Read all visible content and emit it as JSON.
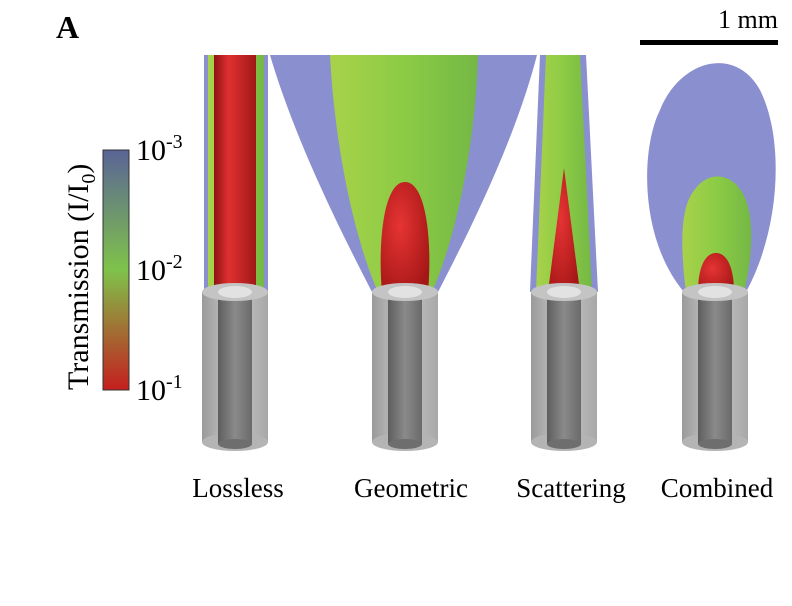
{
  "panel": {
    "letter": "A"
  },
  "scale_bar": {
    "label": "1 mm"
  },
  "colorbar": {
    "title": "Transmission (I/I",
    "title_sub": "0",
    "title_close": ")",
    "ticks": [
      {
        "base": "10",
        "exp": "-3"
      },
      {
        "base": "10",
        "exp": "-2"
      },
      {
        "base": "10",
        "exp": "-1"
      }
    ],
    "colors": [
      "#5a6496",
      "#7fc24a",
      "#c41e1e"
    ]
  },
  "conditions": [
    {
      "key": "lossless",
      "label": "Lossless"
    },
    {
      "key": "geometric",
      "label": "Geometric"
    },
    {
      "key": "scattering",
      "label": "Scattering"
    },
    {
      "key": "combined",
      "label": "Combined"
    }
  ],
  "colors": {
    "blue_region": "#8a8fd0",
    "green_region": "#8ccb45",
    "red_region": "#cc2020",
    "fiber": "#9a9a9a"
  }
}
